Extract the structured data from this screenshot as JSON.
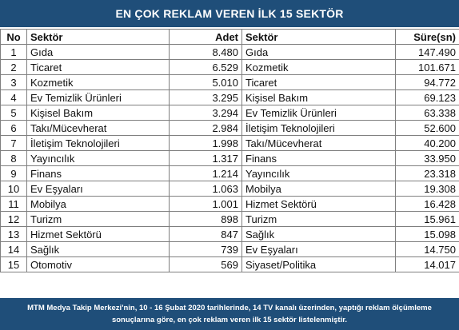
{
  "title": "EN ÇOK REKLAM VEREN İLK 15 SEKTÖR",
  "headers": {
    "no": "No",
    "sektor": "Sektör",
    "adet": "Adet",
    "sektor2": "Sektör",
    "sure": "Süre(sn)"
  },
  "rows": [
    {
      "no": "1",
      "sektor": "Gıda",
      "adet": "8.480",
      "sektor2": "Gıda",
      "sure": "147.490"
    },
    {
      "no": "2",
      "sektor": "Ticaret",
      "adet": "6.529",
      "sektor2": "Kozmetik",
      "sure": "101.671"
    },
    {
      "no": "3",
      "sektor": "Kozmetik",
      "adet": "5.010",
      "sektor2": "Ticaret",
      "sure": "94.772"
    },
    {
      "no": "4",
      "sektor": "Ev Temizlik Ürünleri",
      "adet": "3.295",
      "sektor2": "Kişisel Bakım",
      "sure": "69.123"
    },
    {
      "no": "5",
      "sektor": "Kişisel Bakım",
      "adet": "3.294",
      "sektor2": "Ev Temizlik Ürünleri",
      "sure": "63.338"
    },
    {
      "no": "6",
      "sektor": "Takı/Mücevherat",
      "adet": "2.984",
      "sektor2": "İletişim Teknolojileri",
      "sure": "52.600"
    },
    {
      "no": "7",
      "sektor": "İletişim Teknolojileri",
      "adet": "1.998",
      "sektor2": "Takı/Mücevherat",
      "sure": "40.200"
    },
    {
      "no": "8",
      "sektor": "Yayıncılık",
      "adet": "1.317",
      "sektor2": "Finans",
      "sure": "33.950"
    },
    {
      "no": "9",
      "sektor": "Finans",
      "adet": "1.214",
      "sektor2": "Yayıncılık",
      "sure": "23.318"
    },
    {
      "no": "10",
      "sektor": "Ev Eşyaları",
      "adet": "1.063",
      "sektor2": "Mobilya",
      "sure": "19.308"
    },
    {
      "no": "11",
      "sektor": "Mobilya",
      "adet": "1.001",
      "sektor2": "Hizmet Sektörü",
      "sure": "16.428"
    },
    {
      "no": "12",
      "sektor": "Turizm",
      "adet": "898",
      "sektor2": "Turizm",
      "sure": "15.961"
    },
    {
      "no": "13",
      "sektor": "Hizmet Sektörü",
      "adet": "847",
      "sektor2": "Sağlık",
      "sure": "15.098"
    },
    {
      "no": "14",
      "sektor": "Sağlık",
      "adet": "739",
      "sektor2": "Ev Eşyaları",
      "sure": "14.750"
    },
    {
      "no": "15",
      "sektor": "Otomotiv",
      "adet": "569",
      "sektor2": "Siyaset/Politika",
      "sure": "14.017"
    }
  ],
  "footer": {
    "line1": "MTM Medya Takip Merkezi'nin, 10 - 16 Şubat 2020 tarihlerinde, 14 TV kanalı üzerinden,  yaptığı reklam ölçümleme",
    "line2": "sonuçlarına göre, en çok reklam veren ilk 15 sektör  listelenmiştir."
  },
  "colors": {
    "header_bg": "#1f4e79",
    "header_text": "#ffffff",
    "border": "#7f7f7f"
  }
}
